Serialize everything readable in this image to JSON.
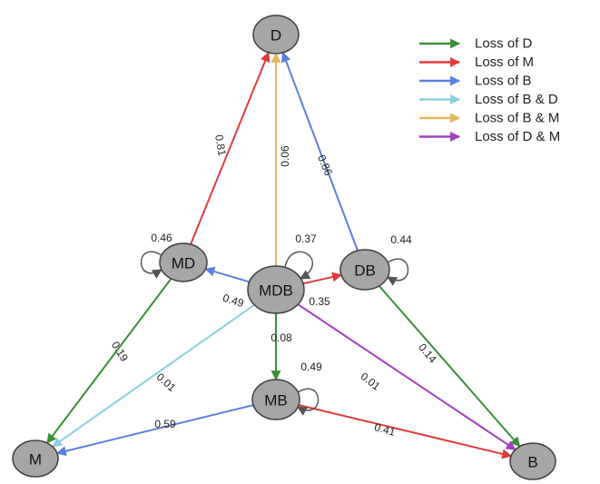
{
  "nodes": [
    {
      "id": "D",
      "label": "D"
    },
    {
      "id": "MD",
      "label": "MD"
    },
    {
      "id": "MDB",
      "label": "MDB"
    },
    {
      "id": "DB",
      "label": "DB"
    },
    {
      "id": "MB",
      "label": "MB"
    },
    {
      "id": "M",
      "label": "M"
    },
    {
      "id": "B",
      "label": "B"
    }
  ],
  "edges": [
    {
      "id": "MD-D",
      "from": "MD",
      "to": "D",
      "color": "#e03a3a",
      "label": "0.81"
    },
    {
      "id": "MDB-D",
      "from": "MDB",
      "to": "D",
      "color": "#e6b85c",
      "label": "0.06"
    },
    {
      "id": "DB-D",
      "from": "DB",
      "to": "D",
      "color": "#5b7fe0",
      "label": "0.86"
    },
    {
      "id": "MDB-MD",
      "from": "MDB",
      "to": "MD",
      "color": "#5b7fe0",
      "label": "0.49"
    },
    {
      "id": "MDB-DB",
      "from": "MDB",
      "to": "DB",
      "color": "#e03a3a",
      "label": "0.35"
    },
    {
      "id": "MDB-MB",
      "from": "MDB",
      "to": "MB",
      "color": "#3a8f3a",
      "label": "0.08"
    },
    {
      "id": "MD-M",
      "from": "MD",
      "to": "M",
      "color": "#3a8f3a",
      "label": "0.19"
    },
    {
      "id": "MDB-M",
      "from": "MDB",
      "to": "M",
      "color": "#8ecfe0",
      "label": "0.01"
    },
    {
      "id": "MB-M",
      "from": "MB",
      "to": "M",
      "color": "#5b7fe0",
      "label": "0.59"
    },
    {
      "id": "MB-B",
      "from": "MB",
      "to": "B",
      "color": "#e03a3a",
      "label": "0.41"
    },
    {
      "id": "DB-B",
      "from": "DB",
      "to": "B",
      "color": "#3a8f3a",
      "label": "0.14"
    },
    {
      "id": "MDB-B",
      "from": "MDB",
      "to": "B",
      "color": "#a040c0",
      "label": "0.01"
    }
  ],
  "self_loops": [
    {
      "node": "MD",
      "label": "0.46"
    },
    {
      "node": "MDB",
      "label": "0.37"
    },
    {
      "node": "DB",
      "label": "0.44"
    },
    {
      "node": "MB",
      "label": "0.49"
    }
  ],
  "legend": [
    {
      "label": "Loss of D",
      "color": "#3a8f3a"
    },
    {
      "label": "Loss of M",
      "color": "#e03a3a"
    },
    {
      "label": "Loss of B",
      "color": "#5b7fe0"
    },
    {
      "label": "Loss of B & D",
      "color": "#8ecfe0"
    },
    {
      "label": "Loss of B & M",
      "color": "#e6b85c"
    },
    {
      "label": "Loss of D & M",
      "color": "#a040c0"
    }
  ]
}
